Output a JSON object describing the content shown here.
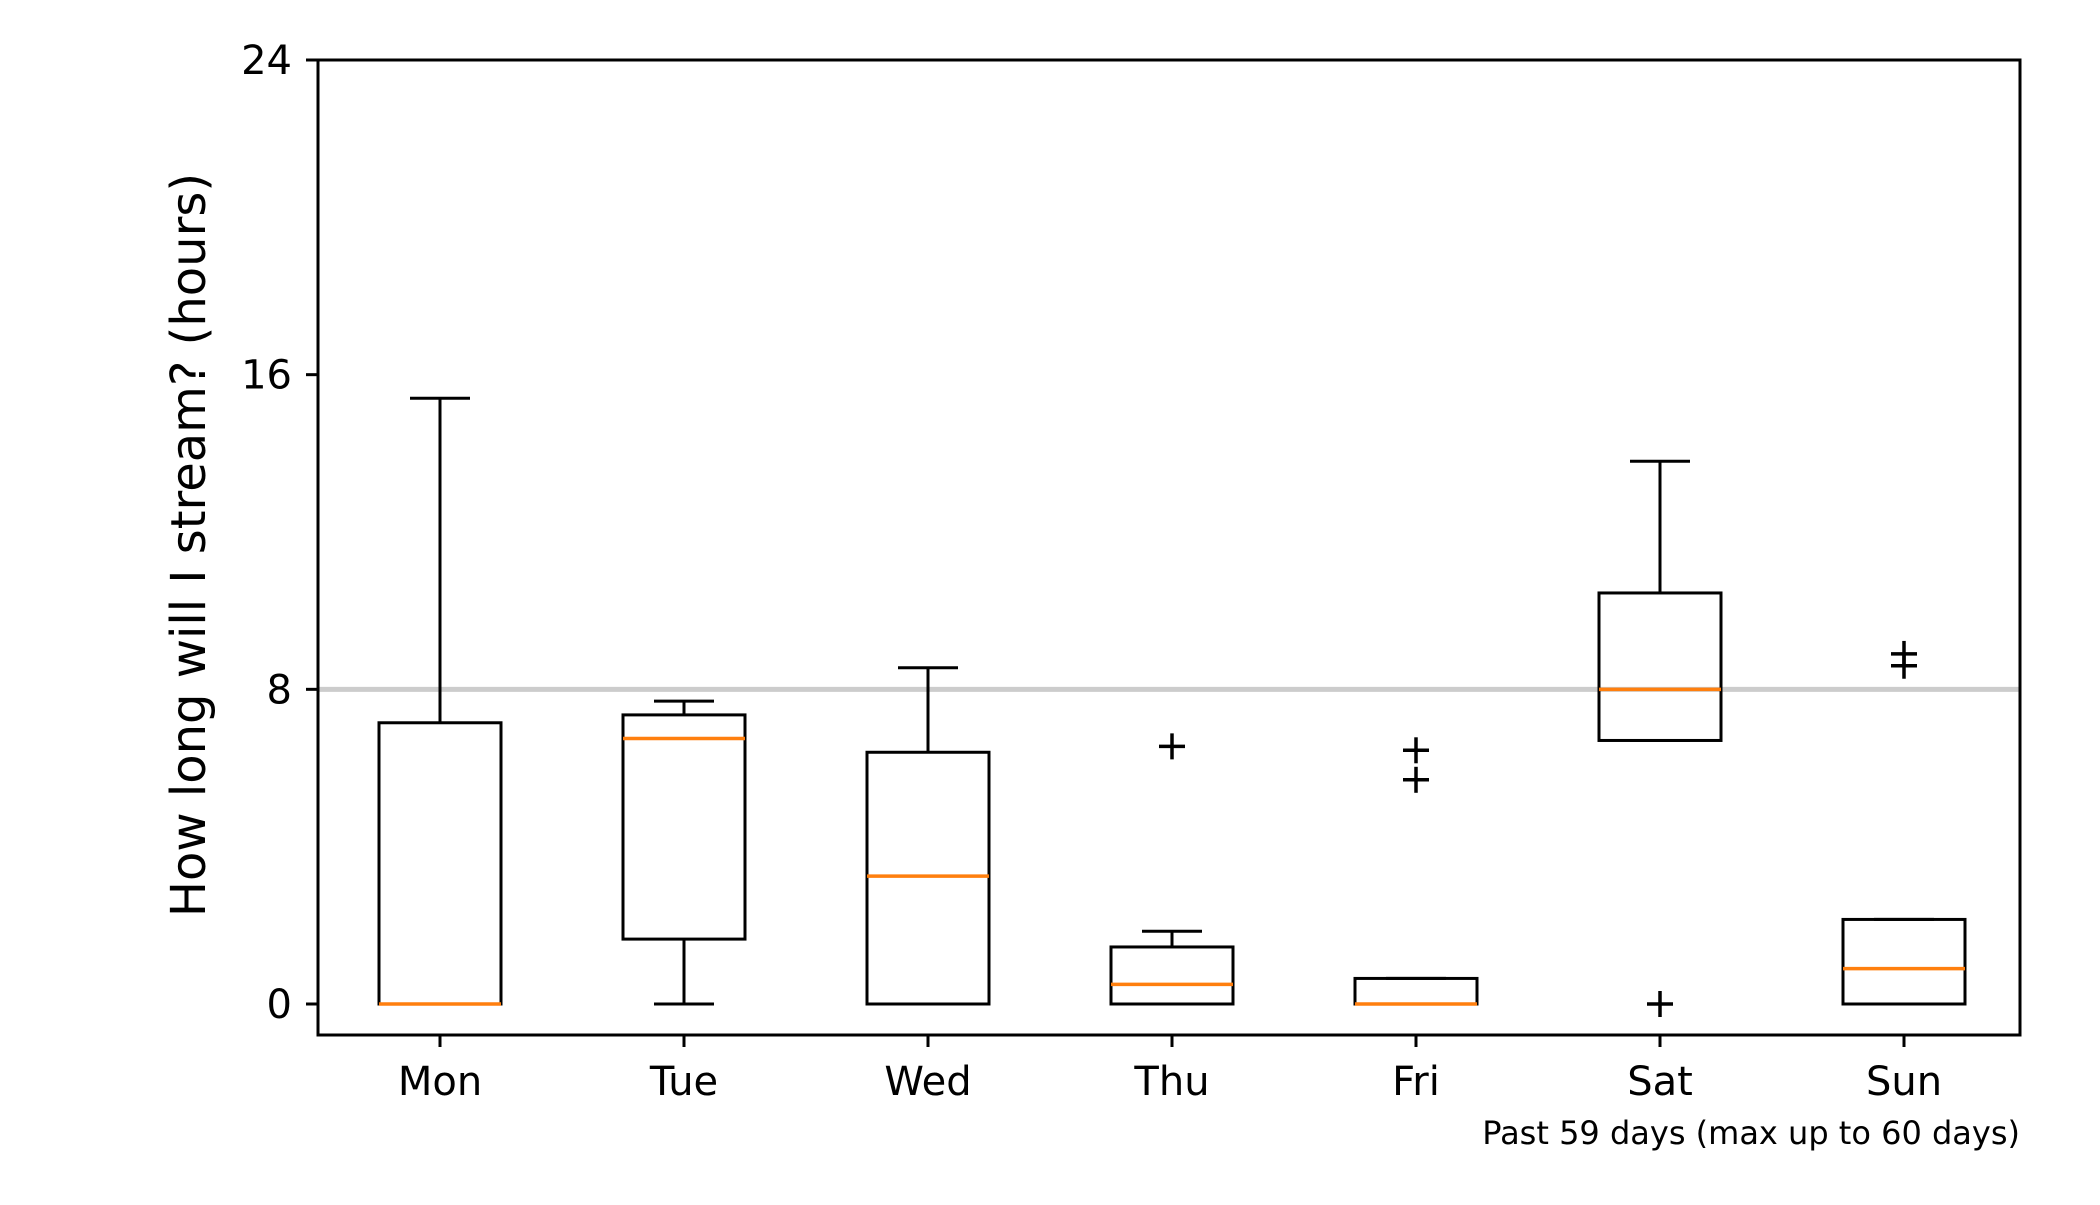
{
  "chart_data": {
    "type": "box",
    "ylabel": "How long will I stream? (hours)",
    "xlabel": "",
    "title": "",
    "footnote": "Past 59 days (max up to 60 days)",
    "ylim": [
      -0.8,
      24
    ],
    "yticks": [
      0,
      8,
      16,
      24
    ],
    "reference_line": 8,
    "categories": [
      "Mon",
      "Tue",
      "Wed",
      "Thu",
      "Fri",
      "Sat",
      "Sun"
    ],
    "boxes": [
      {
        "label": "Mon",
        "whisker_low": 0,
        "q1": 0,
        "median": 0,
        "q3": 7.15,
        "whisker_high": 15.4,
        "outliers": []
      },
      {
        "label": "Tue",
        "whisker_low": 0,
        "q1": 1.65,
        "median": 6.75,
        "q3": 7.35,
        "whisker_high": 7.7,
        "outliers": []
      },
      {
        "label": "Wed",
        "whisker_low": 0,
        "q1": 0,
        "median": 3.25,
        "q3": 6.4,
        "whisker_high": 8.55,
        "outliers": []
      },
      {
        "label": "Thu",
        "whisker_low": 0,
        "q1": 0,
        "median": 0.5,
        "q3": 1.45,
        "whisker_high": 1.85,
        "outliers": [
          6.55
        ]
      },
      {
        "label": "Fri",
        "whisker_low": 0,
        "q1": 0,
        "median": 0,
        "q3": 0.65,
        "whisker_high": 0.65,
        "outliers": [
          6.45,
          5.7
        ]
      },
      {
        "label": "Sat",
        "whisker_low": 6.7,
        "q1": 6.7,
        "median": 8.0,
        "q3": 10.45,
        "whisker_high": 13.8,
        "outliers": [
          0
        ]
      },
      {
        "label": "Sun",
        "whisker_low": 0,
        "q1": 0,
        "median": 0.9,
        "q3": 2.15,
        "whisker_high": 2.15,
        "outliers": [
          8.9,
          8.6
        ]
      }
    ],
    "colors": {
      "box": "#000000",
      "median": "#ff7f0e",
      "reference_line": "#cccccc",
      "outlier": "#000000"
    },
    "outlier_marker": "plus",
    "grid": false
  }
}
